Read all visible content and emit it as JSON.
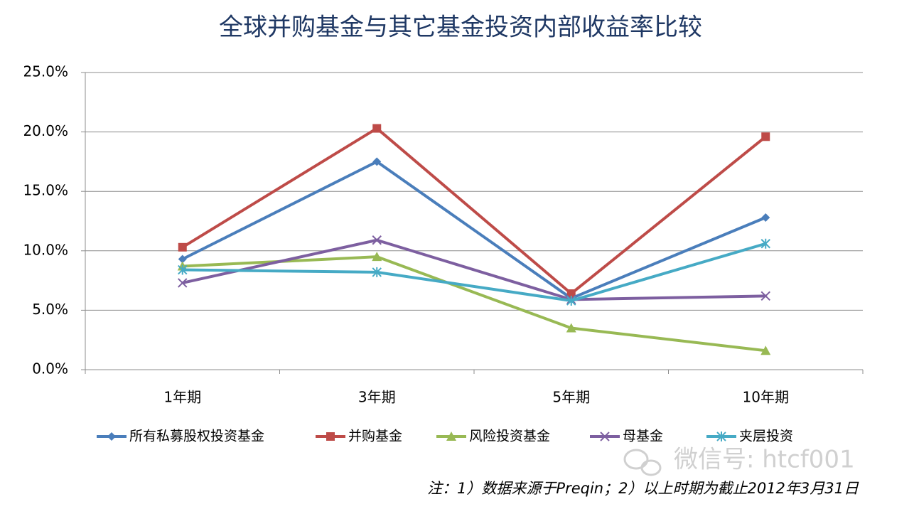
{
  "chart_data": {
    "type": "line",
    "title": "全球并购基金与其它基金投资内部收益率比较",
    "categories": [
      "1年期",
      "3年期",
      "5年期",
      "10年期"
    ],
    "series": [
      {
        "name": "所有私募股权投资基金",
        "color": "#4a7ebb",
        "marker": "diamond",
        "values": [
          9.3,
          17.5,
          6.0,
          12.8
        ]
      },
      {
        "name": "并购基金",
        "color": "#be4b48",
        "marker": "square",
        "values": [
          10.3,
          20.3,
          6.4,
          19.6
        ]
      },
      {
        "name": "风险投资基金",
        "color": "#98b954",
        "marker": "triangle",
        "values": [
          8.7,
          9.5,
          3.5,
          1.6
        ]
      },
      {
        "name": "母基金",
        "color": "#7d5fa0",
        "marker": "x",
        "values": [
          7.3,
          10.9,
          5.9,
          6.2
        ]
      },
      {
        "name": "夹层投资",
        "color": "#46aac5",
        "marker": "asterisk",
        "values": [
          8.4,
          8.2,
          5.8,
          10.6
        ]
      }
    ],
    "ylim": [
      0,
      25
    ],
    "yticks": [
      {
        "value": 0,
        "label": "0.0%"
      },
      {
        "value": 5,
        "label": "5.0%"
      },
      {
        "value": 10,
        "label": "10.0%"
      },
      {
        "value": 15,
        "label": "15.0%"
      },
      {
        "value": 20,
        "label": "20.0%"
      },
      {
        "value": 25,
        "label": "25.0%"
      }
    ],
    "grid": true,
    "legend": "bottom",
    "note": "注：1）数据来源于Preqin；2）以上时期为截止2012年3月31日",
    "watermark": "微信号: htcf001"
  }
}
